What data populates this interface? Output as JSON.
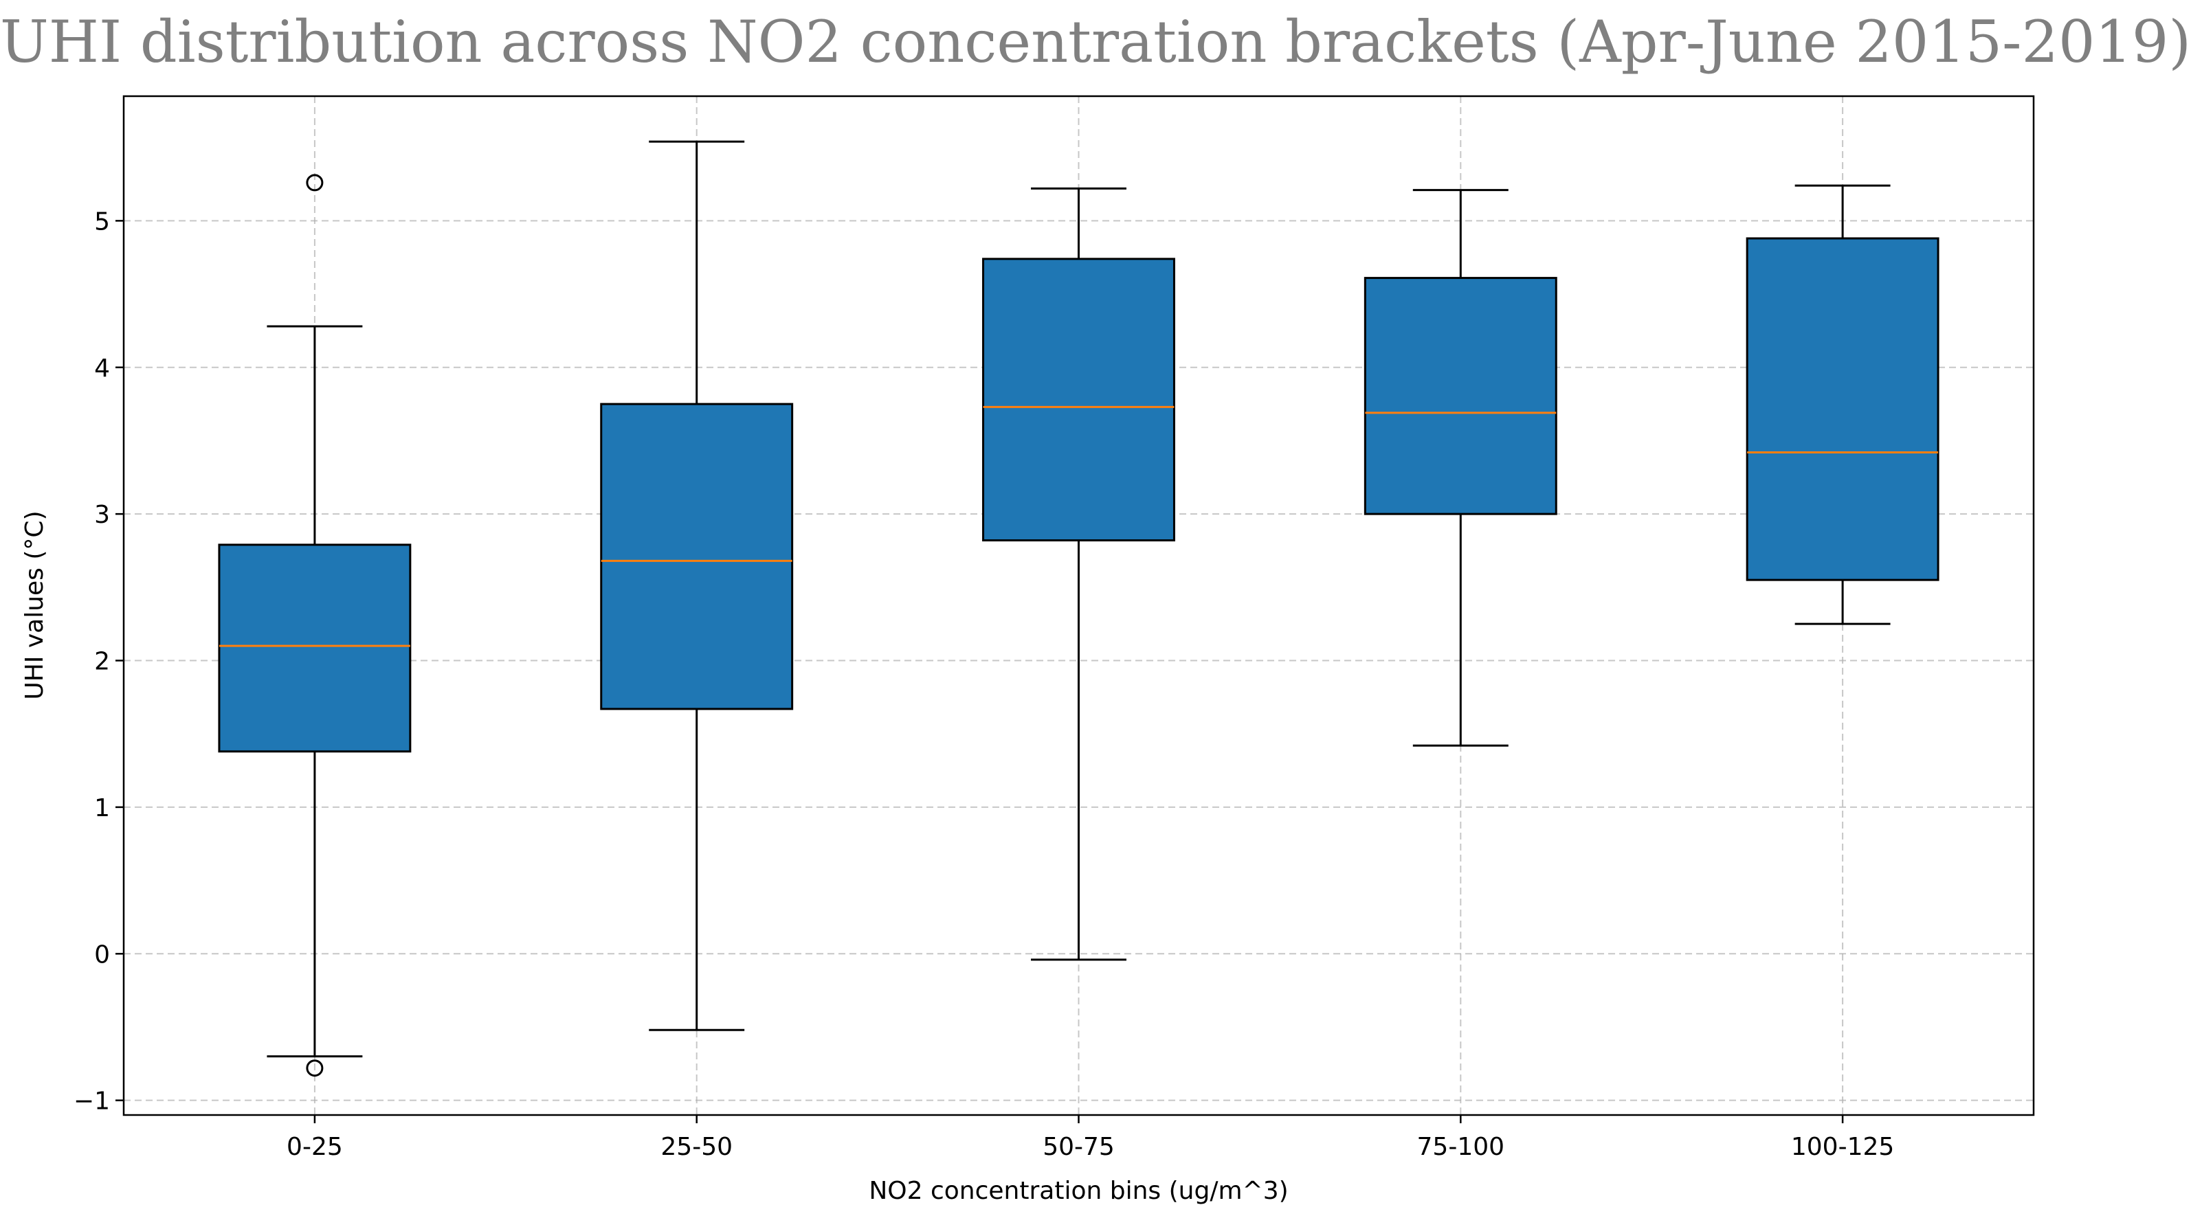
{
  "chart_data": {
    "type": "box",
    "title": "UHI distribution across NO2 concentration brackets (Apr-June 2015-2019)",
    "xlabel": "NO2 concentration bins (ug/m^3)",
    "ylabel": "UHI values (°C)",
    "ylim": [
      -1.1,
      5.85
    ],
    "yticks": [
      -1,
      0,
      1,
      2,
      3,
      4,
      5
    ],
    "ytick_labels": [
      "−1",
      "0",
      "1",
      "2",
      "3",
      "4",
      "5"
    ],
    "grid": true,
    "categories": [
      "0-25",
      "25-50",
      "50-75",
      "75-100",
      "100-125"
    ],
    "boxes": [
      {
        "whisker_low": -0.7,
        "q1": 1.38,
        "median": 2.1,
        "q3": 2.79,
        "whisker_high": 4.28,
        "outliers": [
          5.26,
          -0.78
        ]
      },
      {
        "whisker_low": -0.52,
        "q1": 1.67,
        "median": 2.68,
        "q3": 3.75,
        "whisker_high": 5.54,
        "outliers": []
      },
      {
        "whisker_low": -0.04,
        "q1": 2.82,
        "median": 3.73,
        "q3": 4.74,
        "whisker_high": 5.22,
        "outliers": []
      },
      {
        "whisker_low": 1.42,
        "q1": 3.0,
        "median": 3.69,
        "q3": 4.61,
        "whisker_high": 5.21,
        "outliers": []
      },
      {
        "whisker_low": 2.25,
        "q1": 2.55,
        "median": 3.42,
        "q3": 4.88,
        "whisker_high": 5.24,
        "outliers": []
      }
    ],
    "colors": {
      "box_fill": "#1f77b4",
      "median": "#ff7f0e",
      "edge": "#000000",
      "grid": "#b0b0b0",
      "title": "#808080"
    }
  }
}
